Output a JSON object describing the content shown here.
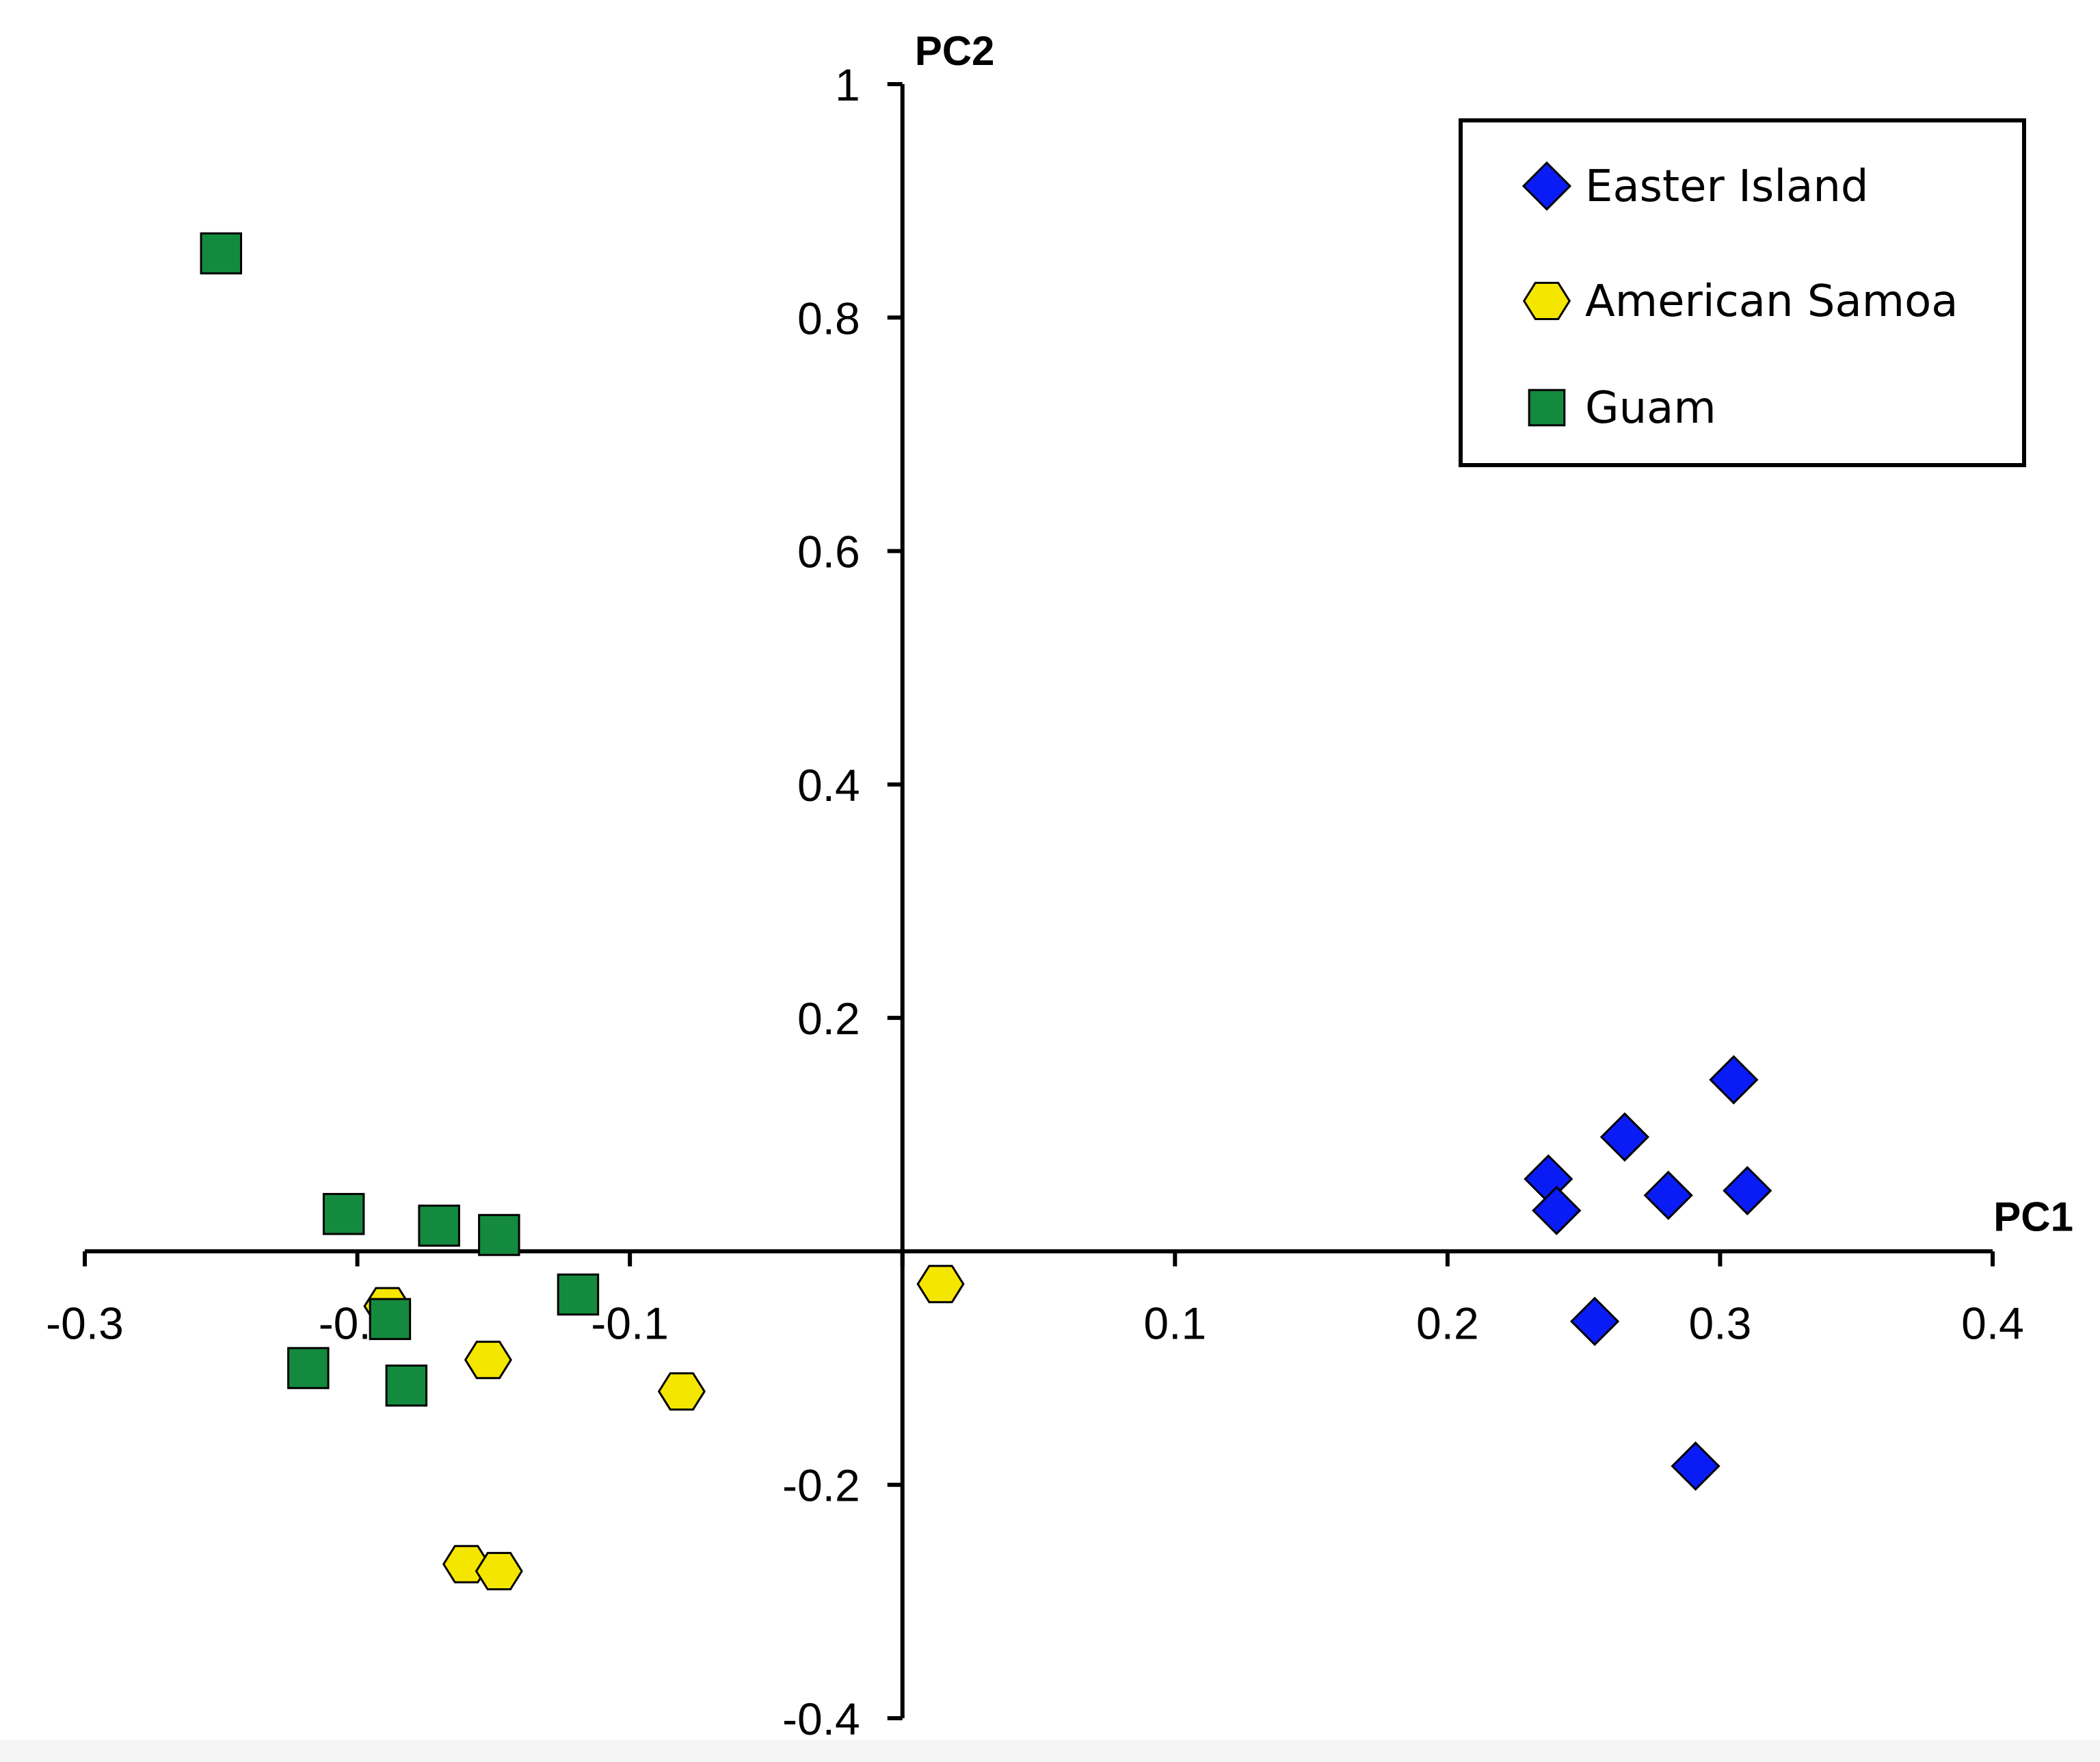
{
  "chart_data": {
    "type": "scatter",
    "title": "",
    "xlabel": "PC1",
    "ylabel": "PC2",
    "xlim": [
      -0.3,
      0.4
    ],
    "ylim": [
      -0.4,
      1.0
    ],
    "x_ticks": [
      -0.3,
      -0.2,
      -0.1,
      0.1,
      0.2,
      0.3,
      0.4
    ],
    "x_tick_labels": [
      "-0.3",
      "-0.2",
      "-0.1",
      "0.1",
      "0.2",
      "0.3",
      "0.4"
    ],
    "y_ticks": [
      1.0,
      0.8,
      0.6,
      0.4,
      0.2,
      -0.2,
      -0.4
    ],
    "y_tick_labels": [
      "1",
      "0.8",
      "0.6",
      "0.4",
      "0.2",
      "-0.2",
      "-0.4"
    ],
    "grid": false,
    "legend_position": "top-right",
    "series": [
      {
        "name": "Easter Island",
        "marker": "diamond",
        "color": "#0a1cf5",
        "points": [
          [
            0.237,
            0.062
          ],
          [
            0.24,
            0.035
          ],
          [
            0.265,
            0.098
          ],
          [
            0.281,
            0.048
          ],
          [
            0.305,
            0.147
          ],
          [
            0.31,
            0.052
          ],
          [
            0.254,
            -0.06
          ],
          [
            0.291,
            -0.184
          ]
        ]
      },
      {
        "name": "American Samoa",
        "marker": "hexagon",
        "color": "#f5e600",
        "points": [
          [
            -0.189,
            -0.047
          ],
          [
            -0.152,
            -0.093
          ],
          [
            -0.081,
            -0.12
          ],
          [
            0.014,
            -0.028
          ],
          [
            -0.16,
            -0.268
          ],
          [
            -0.148,
            -0.274
          ]
        ]
      },
      {
        "name": "Guam",
        "marker": "square",
        "color": "#138a3e",
        "points": [
          [
            -0.25,
            0.855
          ],
          [
            -0.205,
            0.032
          ],
          [
            -0.17,
            0.022
          ],
          [
            -0.148,
            0.014
          ],
          [
            -0.119,
            -0.037
          ],
          [
            -0.188,
            -0.058
          ],
          [
            -0.218,
            -0.1
          ],
          [
            -0.182,
            -0.115
          ]
        ]
      }
    ]
  }
}
